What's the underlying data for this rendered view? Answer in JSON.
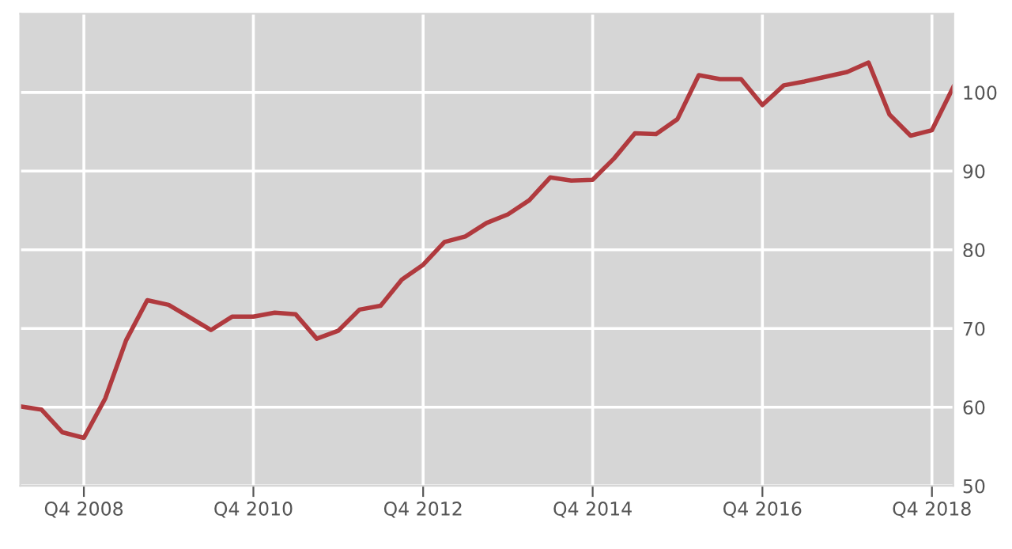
{
  "chart_data": {
    "type": "line",
    "x": [
      "2008-01",
      "2008-04",
      "2008-07",
      "2008-10",
      "2009-01",
      "2009-04",
      "2009-07",
      "2009-10",
      "2010-01",
      "2010-04",
      "2010-07",
      "2010-10",
      "2011-01",
      "2011-04",
      "2011-07",
      "2011-10",
      "2012-01",
      "2012-04",
      "2012-07",
      "2012-10",
      "2013-01",
      "2013-04",
      "2013-07",
      "2013-10",
      "2014-01",
      "2014-04",
      "2014-07",
      "2014-10",
      "2015-01",
      "2015-04",
      "2015-07",
      "2015-10",
      "2016-01",
      "2016-04",
      "2016-07",
      "2016-10",
      "2017-01",
      "2017-04",
      "2017-07",
      "2017-10",
      "2018-01",
      "2018-04",
      "2018-07",
      "2018-10",
      "2019-01"
    ],
    "series": [
      {
        "color": "#b03a3e",
        "values": [
          60.1,
          59.7,
          56.8,
          56.1,
          61.1,
          68.5,
          73.6,
          73.0,
          71.4,
          69.8,
          71.5,
          71.5,
          72.0,
          71.8,
          68.7,
          69.7,
          72.4,
          72.9,
          76.2,
          78.1,
          81.0,
          81.7,
          83.4,
          84.5,
          86.3,
          89.2,
          88.8,
          88.9,
          91.6,
          94.8,
          94.7,
          96.6,
          102.2,
          101.7,
          101.7,
          98.4,
          100.9,
          101.4,
          102.0,
          102.6,
          103.8,
          97.2,
          94.5,
          95.2,
          100.7
        ]
      }
    ],
    "xlim": [
      "2008-01",
      "2019-01"
    ],
    "xticks": [
      {
        "value": "2008-10",
        "label": "Q4 2008"
      },
      {
        "value": "2010-10",
        "label": "Q4 2010"
      },
      {
        "value": "2012-10",
        "label": "Q4 2012"
      },
      {
        "value": "2014-10",
        "label": "Q4 2014"
      },
      {
        "value": "2016-10",
        "label": "Q4 2016"
      },
      {
        "value": "2018-10",
        "label": "Q4 2018"
      }
    ],
    "ylim": [
      50,
      110
    ],
    "yticks": [
      50,
      60,
      70,
      80,
      90,
      100
    ],
    "grid": true,
    "marker": "none",
    "line_style": "solid"
  }
}
